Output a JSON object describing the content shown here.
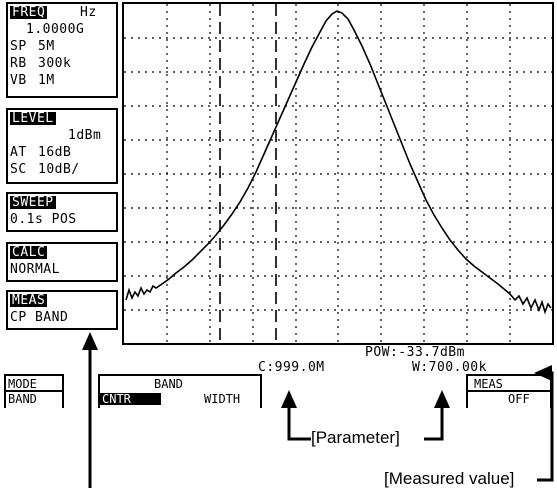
{
  "side": {
    "freq": {
      "title": "FREQ",
      "unit": "Hz",
      "center": "1.0000G",
      "span_label": "SP",
      "span": "5M",
      "rbw_label": "RB",
      "rbw": "300k",
      "vbw_label": "VB",
      "vbw": "1M"
    },
    "level": {
      "title": "LEVEL",
      "ref": "1dBm",
      "att_label": "AT",
      "att": "16dB",
      "scale_label": "SC",
      "scale": "10dB/"
    },
    "sweep": {
      "title": "SWEEP",
      "value": "0.1s POS"
    },
    "calc": {
      "title": "CALC",
      "value": "NORMAL"
    },
    "meas": {
      "title": "MEAS",
      "value": "CP BAND"
    }
  },
  "readout": {
    "power": "POW:-33.7dBm",
    "center": "C:999.0M",
    "width": "W:700.00k"
  },
  "softkeys": {
    "mode_top": "MODE",
    "mode_bottom": "BAND",
    "band_title": "BAND",
    "cntr": "CNTR",
    "width": "WIDTH",
    "meas_top": "MEAS",
    "meas_bottom": "OFF"
  },
  "annotations": {
    "parameter": "[Parameter]",
    "measured": "[Measured value]"
  }
}
